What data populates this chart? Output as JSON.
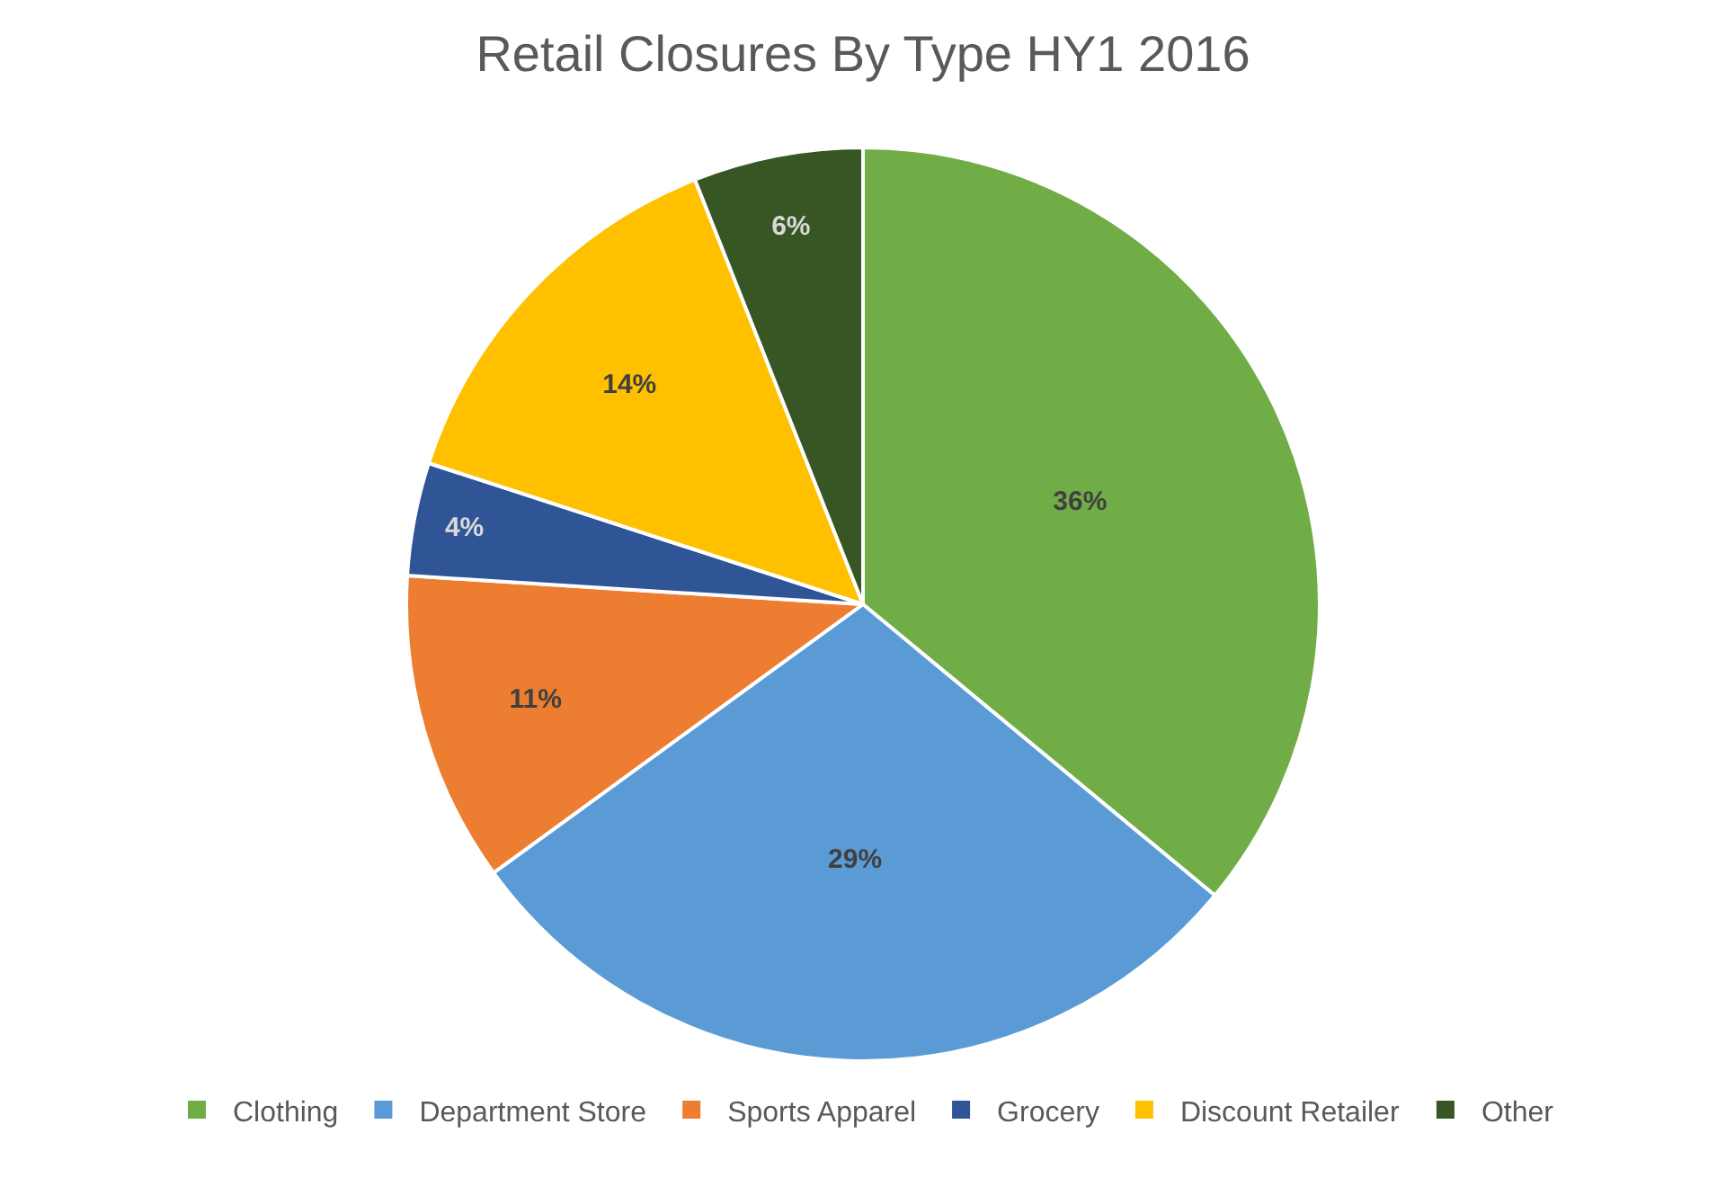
{
  "chart_data": {
    "type": "pie",
    "title": "Retail Closures By Type HY1 2016",
    "categories": [
      "Clothing",
      "Department Store",
      "Sports Apparel",
      "Grocery",
      "Discount Retailer",
      "Other"
    ],
    "values": [
      36,
      29,
      11,
      4,
      14,
      6
    ],
    "value_labels": [
      "36%",
      "29%",
      "11%",
      "4%",
      "14%",
      "6%"
    ],
    "colors": [
      "#70ad47",
      "#5b9bd5",
      "#ed7d31",
      "#2f5597",
      "#ffc000",
      "#375623"
    ],
    "legend": "bottom"
  }
}
